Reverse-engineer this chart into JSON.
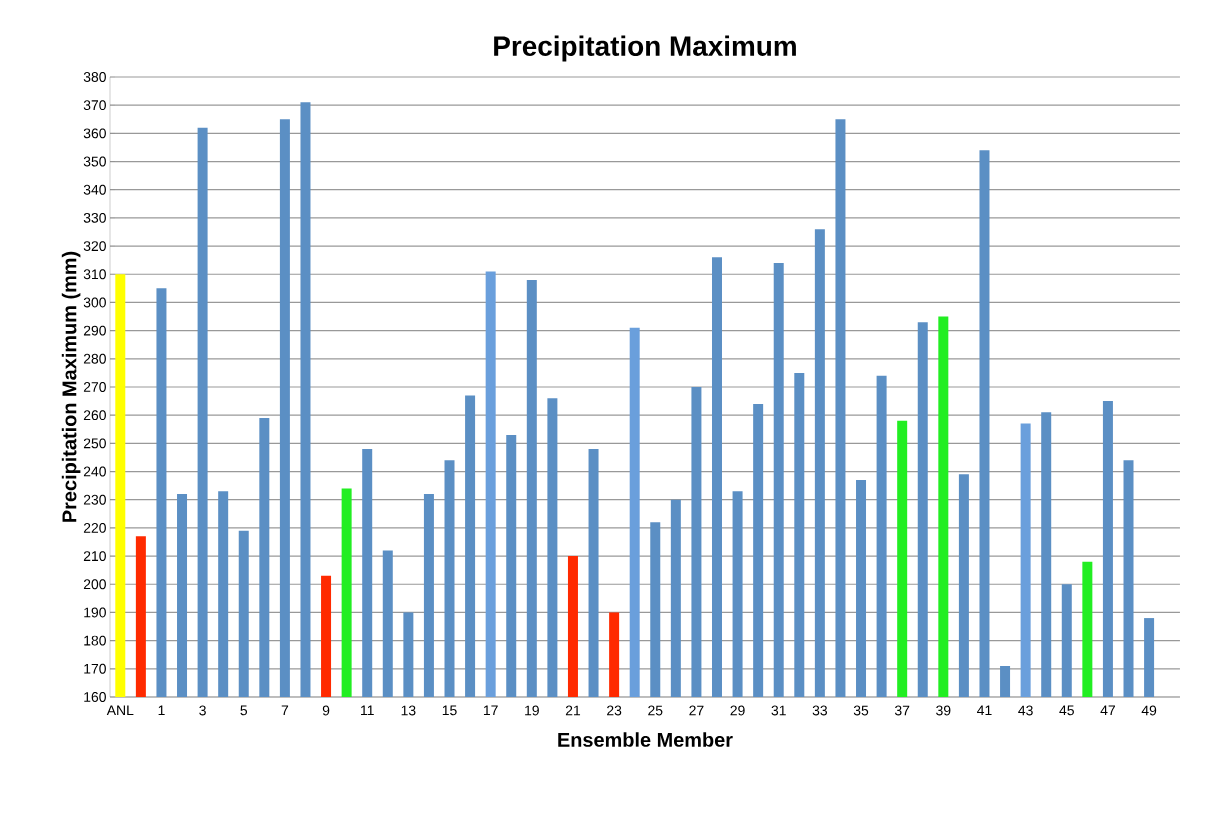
{
  "chart_data": {
    "type": "bar",
    "title": "Precipitation Maximum",
    "xlabel": "Ensemble Member",
    "ylabel": "Precipitation Maximum (mm)",
    "categories": [
      "ANL",
      null,
      "1",
      null,
      "3",
      null,
      "5",
      null,
      "7",
      null,
      "9",
      null,
      "11",
      null,
      "13",
      null,
      "15",
      null,
      "17",
      null,
      "19",
      null,
      "21",
      null,
      "23",
      null,
      "25",
      null,
      "27",
      null,
      "29",
      null,
      "31",
      null,
      "33",
      null,
      "35",
      null,
      "37",
      null,
      "39",
      null,
      "41",
      null,
      "43",
      null,
      "45",
      null,
      "47",
      null,
      "49",
      null
    ],
    "values": [
      310,
      217,
      305,
      232,
      362,
      233,
      219,
      259,
      365,
      371,
      203,
      234,
      248,
      212,
      190,
      232,
      244,
      267,
      311,
      253,
      308,
      266,
      210,
      248,
      190,
      291,
      222,
      230,
      270,
      316,
      233,
      264,
      314,
      275,
      326,
      365,
      237,
      274,
      258,
      293,
      295,
      239,
      354,
      171,
      257,
      261,
      200,
      208,
      265,
      244,
      188,
      null
    ],
    "colors": [
      "#ffff00",
      "#ff2a00",
      "#5b8fc4",
      "#5b8fc4",
      "#5b8fc4",
      "#5b8fc4",
      "#5b8fc4",
      "#5b8fc4",
      "#5b8fc4",
      "#5b8fc4",
      "#ff2a00",
      "#22ee22",
      "#5b8fc4",
      "#5b8fc4",
      "#5b8fc4",
      "#5b8fc4",
      "#5b8fc4",
      "#5b8fc4",
      "#6a9fdc",
      "#5b8fc4",
      "#5b8fc4",
      "#5b8fc4",
      "#ff2a00",
      "#5b8fc4",
      "#ff2a00",
      "#6a9fdc",
      "#5b8fc4",
      "#5b8fc4",
      "#5b8fc4",
      "#5b8fc4",
      "#5b8fc4",
      "#5b8fc4",
      "#5b8fc4",
      "#5b8fc4",
      "#5b8fc4",
      "#5b8fc4",
      "#5b8fc4",
      "#5b8fc4",
      "#22ee22",
      "#5b8fc4",
      "#22ee22",
      "#5b8fc4",
      "#5b8fc4",
      "#5b8fc4",
      "#6a9fdc",
      "#5b8fc4",
      "#5b8fc4",
      "#22ee22",
      "#5b8fc4",
      "#5b8fc4",
      "#5b8fc4",
      "#5b8fc4"
    ],
    "ylim": [
      160,
      380
    ],
    "yticks": [
      160,
      170,
      180,
      190,
      200,
      210,
      220,
      230,
      240,
      250,
      260,
      270,
      280,
      290,
      300,
      310,
      320,
      330,
      340,
      350,
      360,
      370,
      380
    ],
    "grid": "y"
  }
}
